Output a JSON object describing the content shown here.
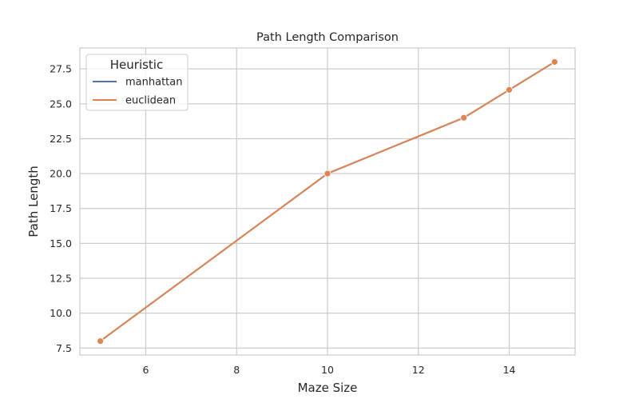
{
  "chart_data": {
    "type": "line",
    "title": "Path Length Comparison",
    "xlabel": "Maze Size",
    "ylabel": "Path Length",
    "xlim": [
      4.55,
      15.45
    ],
    "ylim": [
      7.0,
      29.0
    ],
    "x_ticks": [
      6,
      8,
      10,
      12,
      14
    ],
    "x_tick_labels": [
      "6",
      "8",
      "10",
      "12",
      "14"
    ],
    "y_ticks": [
      7.5,
      10.0,
      12.5,
      15.0,
      17.5,
      20.0,
      22.5,
      25.0,
      27.5
    ],
    "y_tick_labels": [
      "7.5",
      "10.0",
      "12.5",
      "15.0",
      "17.5",
      "20.0",
      "22.5",
      "25.0",
      "27.5"
    ],
    "grid": true,
    "legend": {
      "title": "Heuristic",
      "placement": "top-left"
    },
    "series": [
      {
        "name": "manhattan",
        "color": "#4c72b0",
        "markers": false,
        "x": [
          5,
          10,
          13,
          14,
          15
        ],
        "y": [
          8,
          20,
          24,
          26,
          28
        ]
      },
      {
        "name": "euclidean",
        "color": "#dd8452",
        "markers": true,
        "x": [
          5,
          10,
          13,
          14,
          15
        ],
        "y": [
          8,
          20,
          24,
          26,
          28
        ]
      }
    ]
  }
}
